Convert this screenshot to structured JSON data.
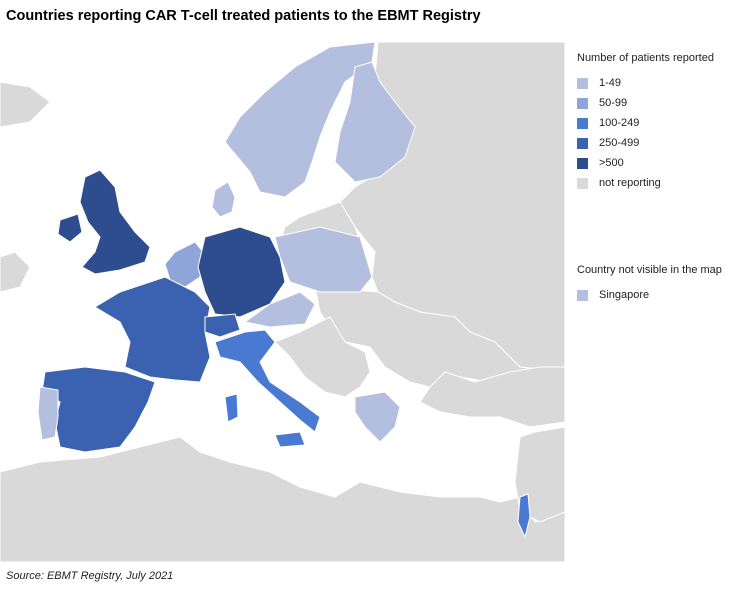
{
  "title": "Countries reporting CAR T-cell treated patients to the EBMT Registry",
  "colors": {
    "sea": "#ffffff",
    "land": "#d9d9d9",
    "border": "#ffffff",
    "c1_49": "#b4bfe0",
    "c50_99": "#8fa4d8",
    "c100_249": "#4a79d1",
    "c250_499": "#3a62b0",
    "c500": "#2d4d8e"
  },
  "legend": {
    "title": "Number of patients reported",
    "items": [
      {
        "label": "1-49",
        "color": "#b4bfe0"
      },
      {
        "label": "50-99",
        "color": "#8fa4d8"
      },
      {
        "label": "100-249",
        "color": "#4a79d1"
      },
      {
        "label": "250-499",
        "color": "#3a62b0"
      },
      {
        "label": ">500",
        "color": "#2d4d8e"
      },
      {
        "label": "not reporting",
        "color": "#d9d9d9"
      }
    ]
  },
  "legend2": {
    "title": "Country not visible in the map",
    "items": [
      {
        "label": "Singapore",
        "color": "#b4bfe0"
      }
    ]
  },
  "source": "Source:  EBMT Registry, July 2021"
}
